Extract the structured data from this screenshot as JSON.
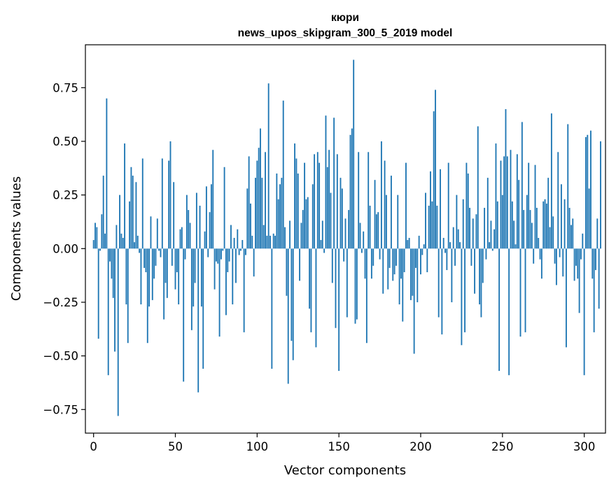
{
  "chart_data": {
    "type": "bar",
    "title_line1": "кюри",
    "title_line2": "news_upos_skipgram_300_5_2019 model",
    "xlabel": "Vector components",
    "ylabel": "Components values",
    "xlim": [
      -5,
      313
    ],
    "ylim": [
      -0.86,
      0.95
    ],
    "xticks": [
      0,
      50,
      100,
      150,
      200,
      250,
      300
    ],
    "xtick_labels": [
      "0",
      "50",
      "100",
      "150",
      "200",
      "250",
      "300"
    ],
    "yticks": [
      -0.75,
      -0.5,
      -0.25,
      0.0,
      0.25,
      0.5,
      0.75
    ],
    "ytick_labels": [
      "−0.75",
      "−0.50",
      "−0.25",
      "0.00",
      "0.25",
      "0.50",
      "0.75"
    ],
    "bar_color": "#1f77b4",
    "values": [
      0.04,
      0.12,
      0.1,
      -0.42,
      -0.01,
      0.16,
      0.34,
      0.07,
      0.7,
      -0.59,
      -0.06,
      -0.14,
      -0.23,
      -0.48,
      0.11,
      -0.78,
      0.25,
      0.07,
      0.05,
      0.49,
      -0.26,
      -0.44,
      0.22,
      0.38,
      0.34,
      0.03,
      0.31,
      0.06,
      -0.02,
      -0.26,
      0.42,
      -0.09,
      -0.11,
      -0.44,
      -0.27,
      0.15,
      -0.24,
      -0.14,
      -0.08,
      0.14,
      -0.01,
      -0.04,
      0.42,
      -0.33,
      -0.16,
      -0.23,
      0.41,
      0.5,
      -0.08,
      0.31,
      -0.19,
      -0.11,
      -0.26,
      0.09,
      0.1,
      -0.62,
      -0.05,
      0.25,
      0.18,
      0.12,
      -0.38,
      -0.27,
      -0.16,
      0.26,
      -0.67,
      0.2,
      -0.27,
      -0.56,
      0.08,
      0.29,
      -0.04,
      0.17,
      0.3,
      0.46,
      -0.19,
      -0.06,
      -0.07,
      -0.41,
      -0.05,
      -0.01,
      0.38,
      -0.31,
      -0.11,
      -0.06,
      0.11,
      -0.26,
      0.05,
      -0.16,
      0.09,
      -0.03,
      -0.01,
      0.04,
      -0.39,
      -0.03,
      0.28,
      0.43,
      0.21,
      0.06,
      -0.13,
      0.33,
      0.41,
      0.47,
      0.56,
      0.33,
      0.11,
      0.45,
      0.06,
      0.77,
      0.06,
      -0.56,
      0.07,
      0.06,
      0.35,
      0.23,
      0.3,
      0.33,
      0.69,
      0.1,
      -0.22,
      -0.63,
      0.13,
      -0.43,
      -0.52,
      0.49,
      0.42,
      0.35,
      -0.15,
      0.12,
      0.18,
      0.4,
      0.23,
      0.24,
      -0.28,
      -0.39,
      0.3,
      0.44,
      -0.46,
      0.45,
      0.4,
      0.04,
      0.13,
      -0.02,
      0.62,
      0.38,
      0.46,
      0.26,
      -0.16,
      0.61,
      -0.37,
      0.44,
      -0.57,
      0.33,
      0.28,
      -0.06,
      0.14,
      -0.32,
      0.18,
      0.53,
      0.56,
      0.88,
      -0.35,
      -0.33,
      0.45,
      0.12,
      -0.02,
      0.08,
      -0.14,
      -0.44,
      0.45,
      0.2,
      -0.14,
      -0.08,
      0.32,
      0.16,
      0.17,
      -0.05,
      0.5,
      -0.21,
      0.41,
      0.25,
      -0.19,
      -0.09,
      0.34,
      -0.15,
      -0.12,
      -0.08,
      0.25,
      -0.26,
      -0.14,
      -0.34,
      -0.11,
      0.4,
      0.04,
      0.05,
      -0.24,
      -0.22,
      -0.49,
      -0.09,
      -0.25,
      0.06,
      -0.12,
      -0.03,
      0.02,
      0.26,
      -0.11,
      0.2,
      0.36,
      0.22,
      0.64,
      0.74,
      0.2,
      -0.32,
      0.37,
      -0.4,
      0.05,
      -0.02,
      -0.1,
      0.4,
      0.03,
      -0.25,
      0.1,
      -0.08,
      0.25,
      0.09,
      0.03,
      -0.45,
      0.23,
      -0.39,
      0.4,
      0.35,
      0.19,
      -0.08,
      0.14,
      -0.21,
      0.16,
      0.57,
      -0.26,
      -0.32,
      -0.16,
      0.19,
      -0.05,
      0.33,
      0.03,
      0.13,
      -0.01,
      0.09,
      0.49,
      0.22,
      -0.57,
      0.41,
      0.25,
      0.43,
      0.65,
      0.43,
      -0.59,
      0.46,
      0.22,
      0.13,
      0.02,
      0.44,
      0.32,
      -0.41,
      0.59,
      0.18,
      -0.39,
      0.25,
      0.4,
      0.18,
      0.12,
      -0.07,
      0.39,
      0.19,
      0.05,
      -0.05,
      -0.14,
      0.22,
      0.23,
      0.21,
      0.33,
      0.1,
      0.63,
      0.15,
      -0.07,
      -0.17,
      0.45,
      -0.04,
      0.3,
      -0.13,
      0.23,
      -0.46,
      0.58,
      0.19,
      0.11,
      0.14,
      -0.15,
      -0.08,
      -0.14,
      -0.3,
      -0.05,
      0.07,
      -0.59,
      0.52,
      0.53,
      0.28,
      0.55,
      -0.14,
      -0.39,
      -0.1,
      0.14,
      -0.28,
      0.5
    ]
  }
}
